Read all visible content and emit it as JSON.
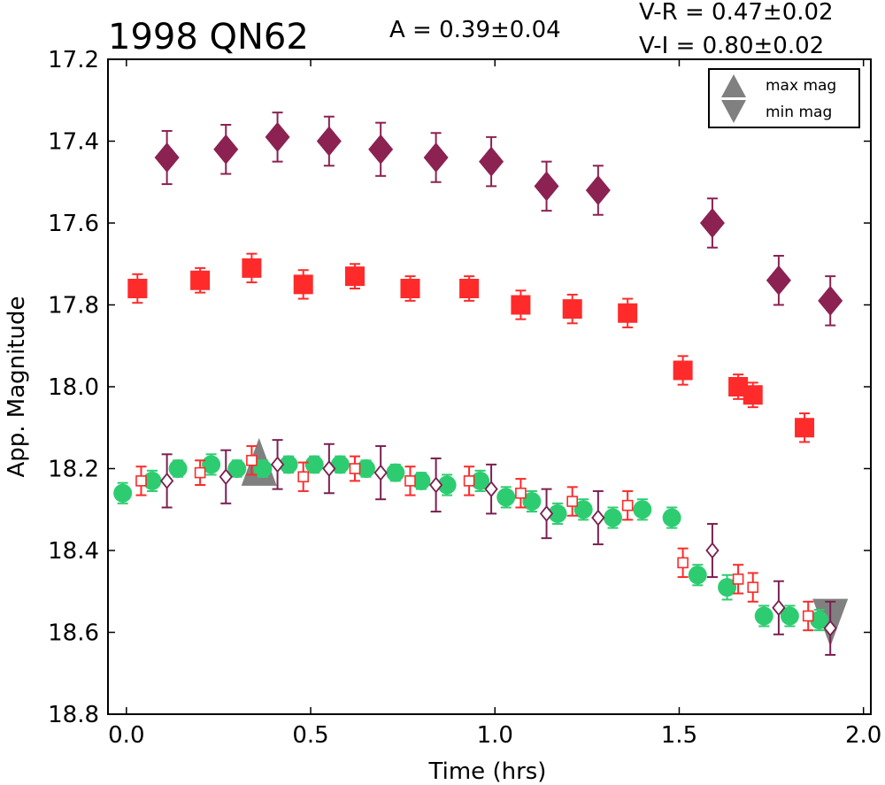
{
  "chart_data": {
    "type": "scatter",
    "title": "1998 QN62",
    "amplitude_label": "A  = 0.39±0.04",
    "colors_text": [
      "V-R = 0.47±0.02",
      "V-I  = 0.80±0.02"
    ],
    "xlabel": "Time (hrs)",
    "ylabel": "App. Magnitude",
    "xlim": [
      -0.05,
      2.02
    ],
    "ylim": [
      18.8,
      17.2
    ],
    "y_inverted": true,
    "grid": false,
    "xticks": [
      0.0,
      0.5,
      1.0,
      1.5,
      2.0
    ],
    "xtick_labels": [
      "0.0",
      "0.5",
      "1.0",
      "1.5",
      "2.0"
    ],
    "yticks": [
      17.2,
      17.4,
      17.6,
      17.8,
      18.0,
      18.2,
      18.4,
      18.6,
      18.8
    ],
    "ytick_labels": [
      "17.2",
      "17.4",
      "17.6",
      "17.8",
      "18.0",
      "18.2",
      "18.4",
      "18.6",
      "18.8"
    ],
    "legend": {
      "placement": "top-right",
      "entries": [
        {
          "label": "max mag",
          "marker": "triangle-up",
          "color": "#808080"
        },
        {
          "label": "min mag",
          "marker": "triangle-down",
          "color": "#808080"
        }
      ]
    },
    "series": [
      {
        "marker": "diamond-filled",
        "color": "#8b2252",
        "points": [
          {
            "x": 0.11,
            "y": 17.44,
            "err": 0.065
          },
          {
            "x": 0.27,
            "y": 17.42,
            "err": 0.06
          },
          {
            "x": 0.41,
            "y": 17.39,
            "err": 0.06
          },
          {
            "x": 0.55,
            "y": 17.4,
            "err": 0.06
          },
          {
            "x": 0.69,
            "y": 17.42,
            "err": 0.065
          },
          {
            "x": 0.84,
            "y": 17.44,
            "err": 0.06
          },
          {
            "x": 0.99,
            "y": 17.45,
            "err": 0.06
          },
          {
            "x": 1.14,
            "y": 17.51,
            "err": 0.06
          },
          {
            "x": 1.28,
            "y": 17.52,
            "err": 0.06
          },
          {
            "x": 1.59,
            "y": 17.6,
            "err": 0.06
          },
          {
            "x": 1.77,
            "y": 17.74,
            "err": 0.06
          },
          {
            "x": 1.91,
            "y": 17.79,
            "err": 0.06
          }
        ]
      },
      {
        "marker": "square-filled",
        "color": "#ff2a2a",
        "points": [
          {
            "x": 0.03,
            "y": 17.76,
            "err": 0.035
          },
          {
            "x": 0.2,
            "y": 17.74,
            "err": 0.03
          },
          {
            "x": 0.34,
            "y": 17.71,
            "err": 0.035
          },
          {
            "x": 0.48,
            "y": 17.75,
            "err": 0.035
          },
          {
            "x": 0.62,
            "y": 17.73,
            "err": 0.03
          },
          {
            "x": 0.77,
            "y": 17.76,
            "err": 0.03
          },
          {
            "x": 0.93,
            "y": 17.76,
            "err": 0.03
          },
          {
            "x": 1.07,
            "y": 17.8,
            "err": 0.035
          },
          {
            "x": 1.21,
            "y": 17.81,
            "err": 0.035
          },
          {
            "x": 1.36,
            "y": 17.82,
            "err": 0.035
          },
          {
            "x": 1.51,
            "y": 17.96,
            "err": 0.035
          },
          {
            "x": 1.66,
            "y": 18.0,
            "err": 0.03
          },
          {
            "x": 1.7,
            "y": 18.02,
            "err": 0.03
          },
          {
            "x": 1.84,
            "y": 18.1,
            "err": 0.035
          }
        ]
      },
      {
        "marker": "circle-filled",
        "color": "#2ecc71",
        "points": [
          {
            "x": -0.01,
            "y": 18.26,
            "err": 0.025
          },
          {
            "x": 0.07,
            "y": 18.23,
            "err": 0.025
          },
          {
            "x": 0.14,
            "y": 18.2,
            "err": 0.02
          },
          {
            "x": 0.23,
            "y": 18.19,
            "err": 0.025
          },
          {
            "x": 0.3,
            "y": 18.2,
            "err": 0.02
          },
          {
            "x": 0.37,
            "y": 18.2,
            "err": 0.02
          },
          {
            "x": 0.44,
            "y": 18.19,
            "err": 0.02
          },
          {
            "x": 0.51,
            "y": 18.19,
            "err": 0.02
          },
          {
            "x": 0.58,
            "y": 18.19,
            "err": 0.02
          },
          {
            "x": 0.65,
            "y": 18.2,
            "err": 0.02
          },
          {
            "x": 0.73,
            "y": 18.21,
            "err": 0.02
          },
          {
            "x": 0.8,
            "y": 18.23,
            "err": 0.02
          },
          {
            "x": 0.87,
            "y": 18.24,
            "err": 0.025
          },
          {
            "x": 0.96,
            "y": 18.23,
            "err": 0.025
          },
          {
            "x": 1.03,
            "y": 18.27,
            "err": 0.025
          },
          {
            "x": 1.1,
            "y": 18.28,
            "err": 0.025
          },
          {
            "x": 1.17,
            "y": 18.31,
            "err": 0.025
          },
          {
            "x": 1.24,
            "y": 18.3,
            "err": 0.025
          },
          {
            "x": 1.32,
            "y": 18.32,
            "err": 0.025
          },
          {
            "x": 1.4,
            "y": 18.3,
            "err": 0.025
          },
          {
            "x": 1.48,
            "y": 18.32,
            "err": 0.025
          },
          {
            "x": 1.55,
            "y": 18.46,
            "err": 0.025
          },
          {
            "x": 1.63,
            "y": 18.49,
            "err": 0.03
          },
          {
            "x": 1.73,
            "y": 18.56,
            "err": 0.025
          },
          {
            "x": 1.8,
            "y": 18.56,
            "err": 0.025
          },
          {
            "x": 1.88,
            "y": 18.57,
            "err": 0.025
          }
        ]
      },
      {
        "marker": "square-open",
        "color": "#ff2a2a",
        "points": [
          {
            "x": 0.04,
            "y": 18.23,
            "err": 0.035
          },
          {
            "x": 0.2,
            "y": 18.21,
            "err": 0.03
          },
          {
            "x": 0.34,
            "y": 18.18,
            "err": 0.035
          },
          {
            "x": 0.48,
            "y": 18.22,
            "err": 0.035
          },
          {
            "x": 0.62,
            "y": 18.2,
            "err": 0.03
          },
          {
            "x": 0.77,
            "y": 18.23,
            "err": 0.035
          },
          {
            "x": 0.93,
            "y": 18.23,
            "err": 0.035
          },
          {
            "x": 1.07,
            "y": 18.26,
            "err": 0.035
          },
          {
            "x": 1.21,
            "y": 18.28,
            "err": 0.035
          },
          {
            "x": 1.36,
            "y": 18.29,
            "err": 0.035
          },
          {
            "x": 1.51,
            "y": 18.43,
            "err": 0.035
          },
          {
            "x": 1.66,
            "y": 18.47,
            "err": 0.035
          },
          {
            "x": 1.7,
            "y": 18.49,
            "err": 0.035
          },
          {
            "x": 1.85,
            "y": 18.56,
            "err": 0.035
          }
        ]
      },
      {
        "marker": "diamond-open",
        "color": "#7b2052",
        "points": [
          {
            "x": 0.11,
            "y": 18.23,
            "err": 0.065
          },
          {
            "x": 0.27,
            "y": 18.22,
            "err": 0.065
          },
          {
            "x": 0.41,
            "y": 18.19,
            "err": 0.06
          },
          {
            "x": 0.55,
            "y": 18.2,
            "err": 0.06
          },
          {
            "x": 0.69,
            "y": 18.21,
            "err": 0.065
          },
          {
            "x": 0.84,
            "y": 18.24,
            "err": 0.065
          },
          {
            "x": 0.99,
            "y": 18.25,
            "err": 0.06
          },
          {
            "x": 1.14,
            "y": 18.31,
            "err": 0.06
          },
          {
            "x": 1.28,
            "y": 18.32,
            "err": 0.065
          },
          {
            "x": 1.59,
            "y": 18.4,
            "err": 0.065
          },
          {
            "x": 1.77,
            "y": 18.54,
            "err": 0.065
          },
          {
            "x": 1.91,
            "y": 18.59,
            "err": 0.065
          }
        ]
      }
    ],
    "extrema": [
      {
        "kind": "max",
        "marker": "triangle-up",
        "color": "#808080",
        "x": 0.36,
        "y": 18.19
      },
      {
        "kind": "min",
        "marker": "triangle-down",
        "color": "#808080",
        "x": 1.91,
        "y": 18.57
      }
    ]
  }
}
